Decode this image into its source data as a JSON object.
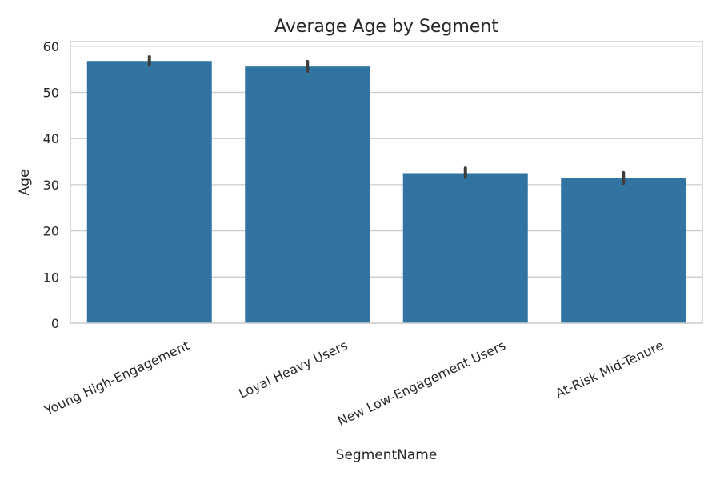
{
  "chart_data": {
    "type": "bar",
    "title": "Average Age by Segment",
    "xlabel": "SegmentName",
    "ylabel": "Age",
    "categories": [
      "Young High-Engagement",
      "Loyal Heavy Users",
      "New Low-Engagement Users",
      "At-Risk Mid-Tenure"
    ],
    "values": [
      56.8,
      55.6,
      32.5,
      31.4
    ],
    "error_low": [
      55.9,
      54.6,
      31.6,
      30.3
    ],
    "error_high": [
      57.7,
      56.7,
      33.6,
      32.6
    ],
    "ylim": [
      0,
      61
    ],
    "yticks": [
      0,
      10,
      20,
      30,
      40,
      50,
      60
    ],
    "grid": "y",
    "bar_color": "#3274a1",
    "error_color": "#3d3d3d"
  }
}
